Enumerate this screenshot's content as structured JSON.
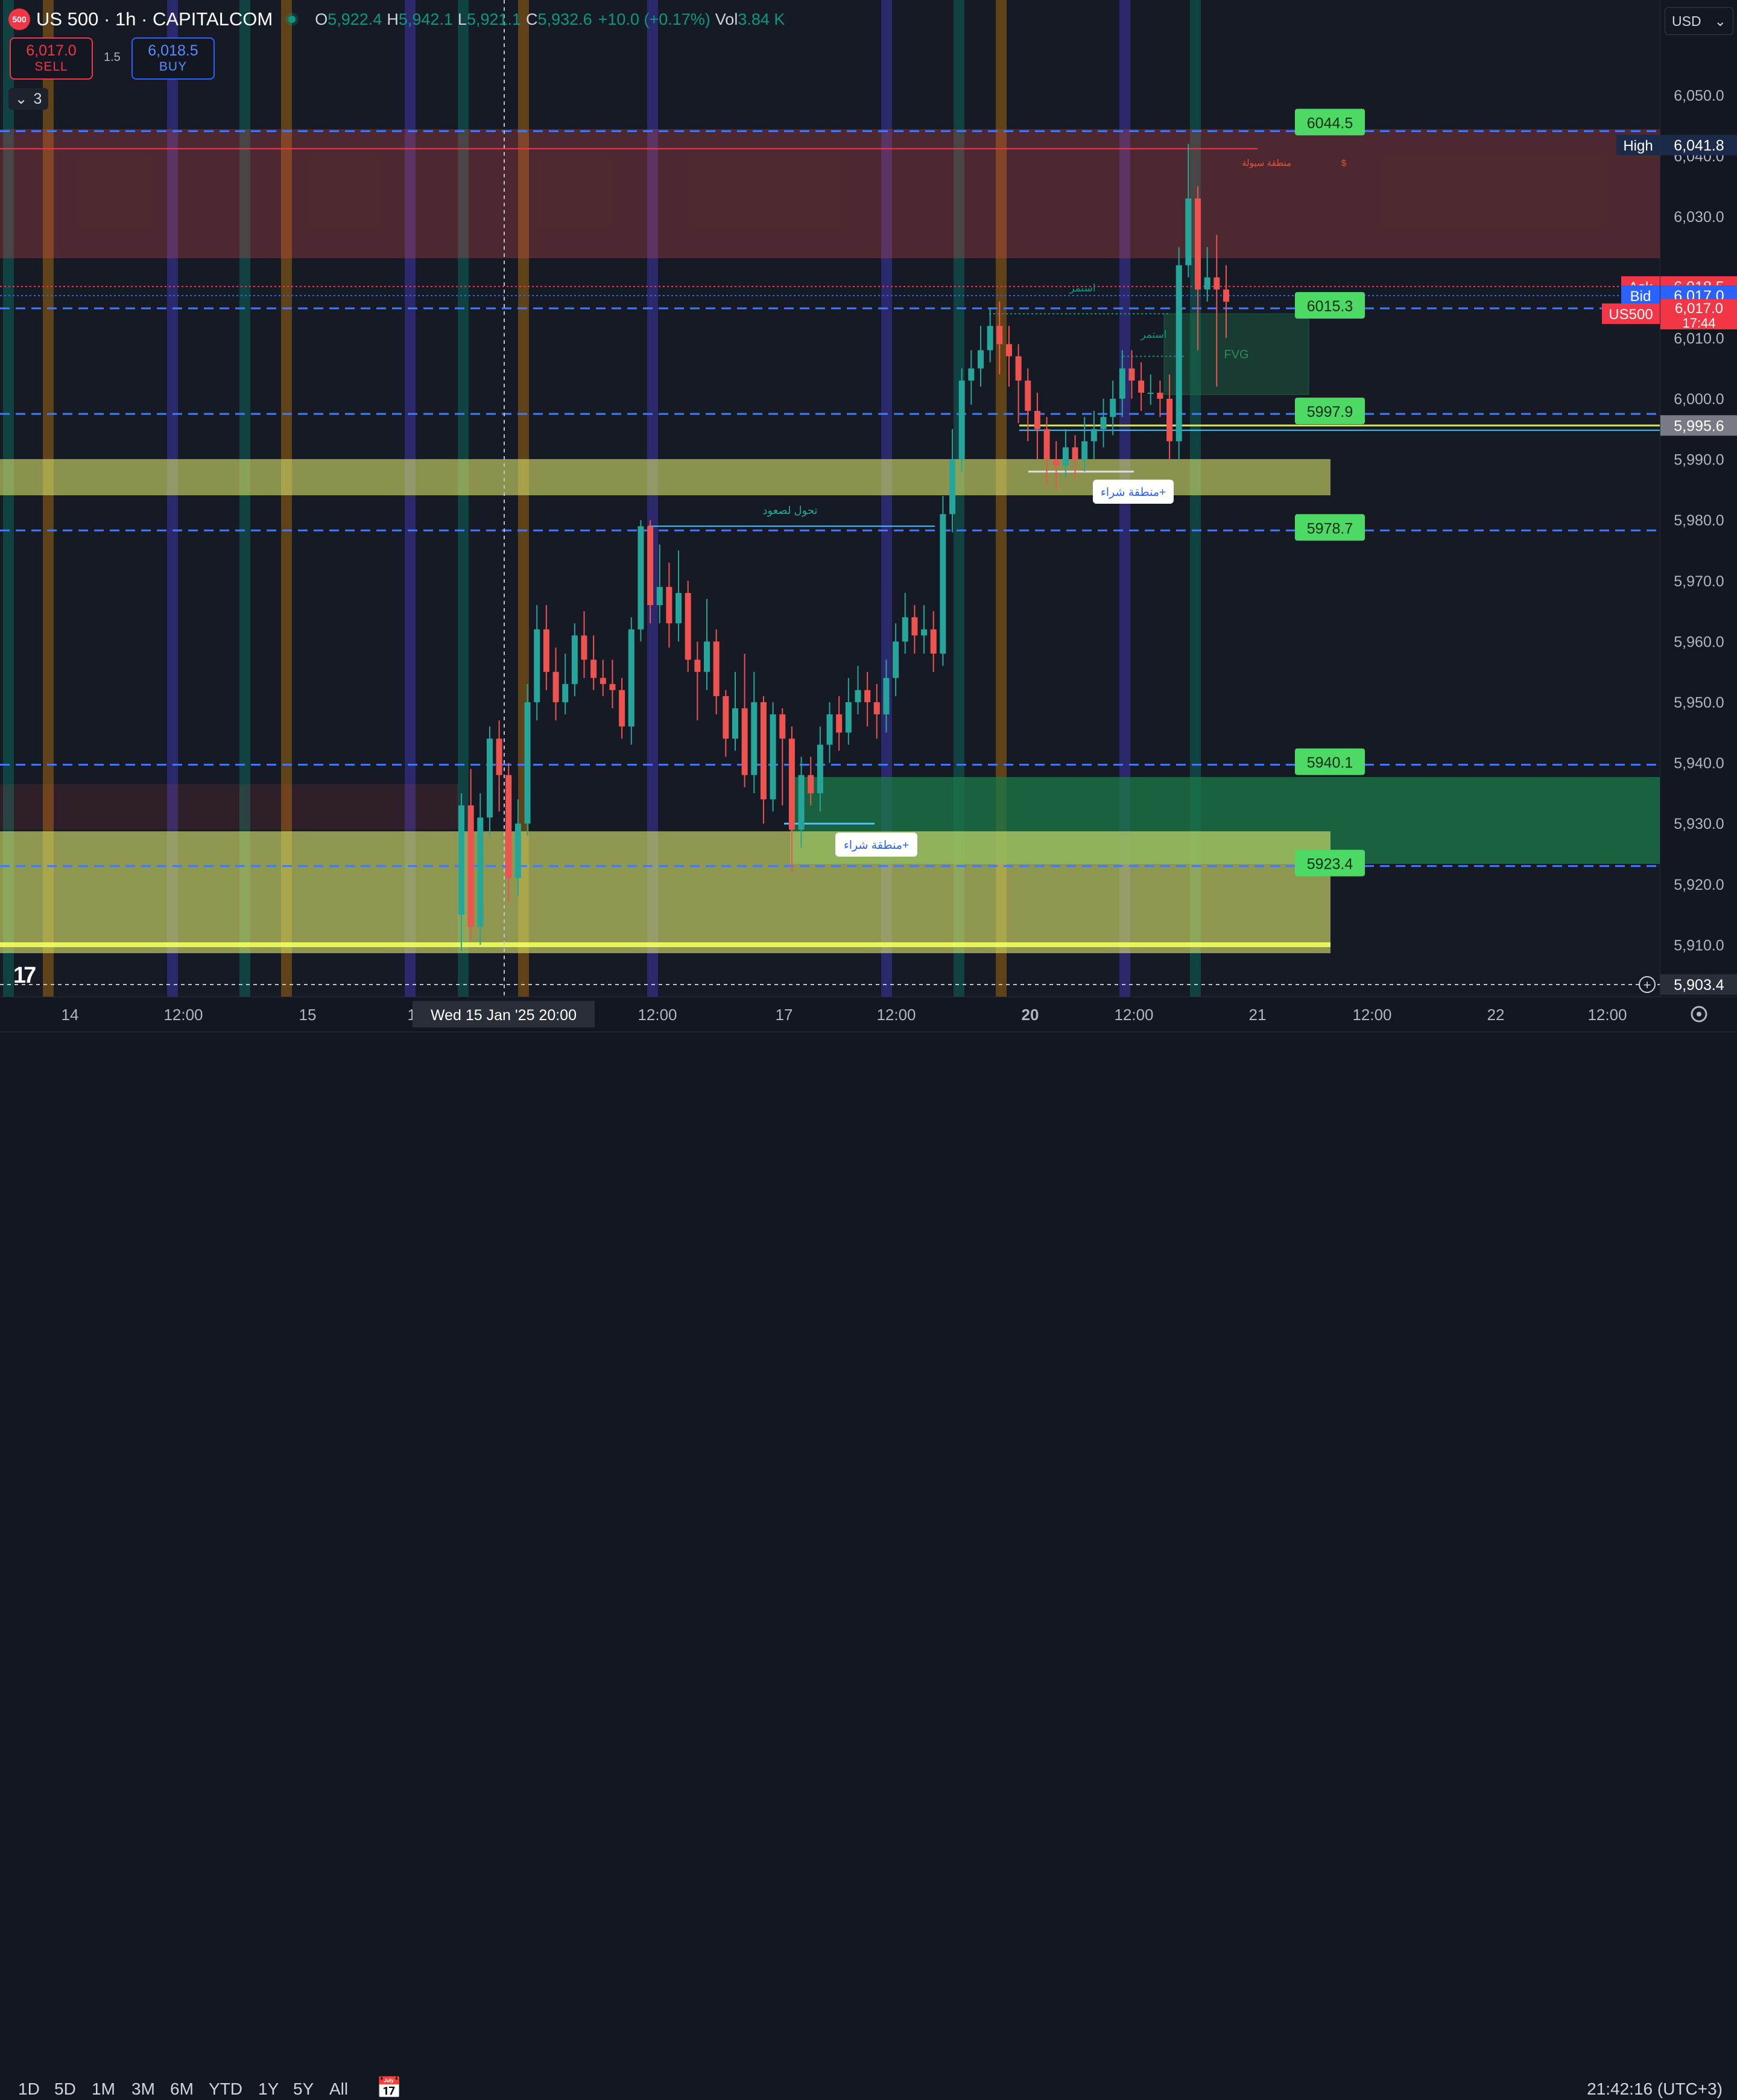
{
  "legend": {
    "logo_text": "500",
    "symbol": "US 500 · 1h · CAPITALCOM",
    "open_label": "O",
    "open": "5,922.4",
    "high_label": "H",
    "high": "5,942.1",
    "low_label": "L",
    "low": "5,921.1",
    "close_label": "C",
    "close": "5,932.6",
    "change": "+10.0 (+0.17%)",
    "vol_label": "Vol",
    "vol": "3.84 K"
  },
  "trade": {
    "sell_price": "6,017.0",
    "sell_label": "SELL",
    "spread": "1.5",
    "buy_price": "6,018.5",
    "buy_label": "BUY",
    "collapse_count": "3"
  },
  "currency": "USD",
  "price_axis": {
    "ticks": [
      "6,050.0",
      "6,040.0",
      "6,030.0",
      "6,010.0",
      "6,000.0",
      "5,990.0",
      "5,980.0",
      "5,970.0",
      "5,960.0",
      "5,950.0",
      "5,940.0",
      "5,930.0",
      "5,920.0",
      "5,910.0"
    ],
    "labels": {
      "high_tag": "High",
      "high_value": "6,041.8",
      "ask_tag": "Ask",
      "ask_value": "6,018.5",
      "bid_tag": "Bid",
      "bid_value": "6,017.0",
      "sym_tag": "US500",
      "sym_value": "6,017.0",
      "countdown": "17:44",
      "level_value": "5,995.6",
      "cursor_value": "5,903.4"
    }
  },
  "time_axis": {
    "ticks": [
      "14",
      "12:00",
      "15",
      "12",
      "12:00",
      "17",
      "12:00",
      "20",
      "12:00",
      "21",
      "12:00",
      "22",
      "12:00"
    ],
    "cursor_label": "Wed 15 Jan '25   20:00"
  },
  "chart_data": {
    "type": "candlestick",
    "y_range": [
      5903,
      6055
    ],
    "levels": [
      "6044.5",
      "6015.3",
      "5997.9",
      "5978.7",
      "5940.1",
      "5923.4"
    ],
    "annotations": {
      "liquidity_zone": "منطقة سيولة",
      "liquidity_symbol": "$",
      "continue_1": "استمر",
      "continue_2": "استمر",
      "fvg": "FVG",
      "shift_up": "تحول لصعود",
      "buy_zone_1": "منطقة شراء+",
      "buy_zone_2": "منطقة شراء+"
    },
    "candles": [
      [
        5915,
        5933,
        5909,
        5935
      ],
      [
        5933,
        5913,
        5911,
        5939
      ],
      [
        5913,
        5931,
        5910,
        5935
      ],
      [
        5931,
        5944,
        5928,
        5946
      ],
      [
        5944,
        5938,
        5932,
        5947
      ],
      [
        5938,
        5921,
        5917,
        5940
      ],
      [
        5921,
        5930,
        5918,
        5934
      ],
      [
        5930,
        5950,
        5928,
        5953
      ],
      [
        5950,
        5962,
        5947,
        5966
      ],
      [
        5962,
        5955,
        5952,
        5966
      ],
      [
        5955,
        5950,
        5947,
        5959
      ],
      [
        5950,
        5953,
        5948,
        5958
      ],
      [
        5953,
        5961,
        5951,
        5963
      ],
      [
        5961,
        5957,
        5954,
        5965
      ],
      [
        5957,
        5954,
        5952,
        5961
      ],
      [
        5954,
        5953,
        5951,
        5957
      ],
      [
        5953,
        5952,
        5949,
        5957
      ],
      [
        5952,
        5946,
        5944,
        5954
      ],
      [
        5946,
        5962,
        5943,
        5964
      ],
      [
        5962,
        5979,
        5960,
        5980
      ],
      [
        5979,
        5966,
        5963,
        5980
      ],
      [
        5966,
        5969,
        5963,
        5976
      ],
      [
        5969,
        5963,
        5959,
        5973
      ],
      [
        5963,
        5968,
        5960,
        5975
      ],
      [
        5968,
        5957,
        5955,
        5970
      ],
      [
        5957,
        5955,
        5947,
        5960
      ],
      [
        5955,
        5960,
        5952,
        5967
      ],
      [
        5960,
        5951,
        5948,
        5962
      ],
      [
        5951,
        5944,
        5941,
        5952
      ],
      [
        5944,
        5949,
        5942,
        5955
      ],
      [
        5949,
        5938,
        5936,
        5958
      ],
      [
        5938,
        5950,
        5935,
        5955
      ],
      [
        5950,
        5934,
        5930,
        5951
      ],
      [
        5934,
        5948,
        5932,
        5950
      ],
      [
        5948,
        5944,
        5933,
        5949
      ],
      [
        5944,
        5929,
        5922,
        5946
      ],
      [
        5929,
        5938,
        5926,
        5941
      ],
      [
        5938,
        5935,
        5933,
        5941
      ],
      [
        5935,
        5943,
        5932,
        5946
      ],
      [
        5943,
        5948,
        5940,
        5950
      ],
      [
        5948,
        5945,
        5942,
        5951
      ],
      [
        5945,
        5950,
        5943,
        5954
      ],
      [
        5950,
        5952,
        5948,
        5956
      ],
      [
        5952,
        5950,
        5946,
        5955
      ],
      [
        5950,
        5948,
        5944,
        5953
      ],
      [
        5948,
        5954,
        5945,
        5957
      ],
      [
        5954,
        5960,
        5951,
        5963
      ],
      [
        5960,
        5964,
        5958,
        5968
      ],
      [
        5964,
        5961,
        5958,
        5966
      ],
      [
        5961,
        5962,
        5958,
        5966
      ],
      [
        5962,
        5958,
        5955,
        5965
      ],
      [
        5958,
        5981,
        5956,
        5984
      ],
      [
        5981,
        5990,
        5978,
        5995
      ],
      [
        5990,
        6003,
        5988,
        6005
      ],
      [
        6003,
        6005,
        5999,
        6008
      ],
      [
        6005,
        6008,
        6002,
        6012
      ],
      [
        6008,
        6012,
        6006,
        6015
      ],
      [
        6012,
        6009,
        6004,
        6016
      ],
      [
        6009,
        6007,
        6002,
        6012
      ],
      [
        6007,
        6003,
        5996,
        6009
      ],
      [
        6003,
        5998,
        5993,
        6005
      ],
      [
        5998,
        5995,
        5990,
        6001
      ],
      [
        5995,
        5990,
        5986,
        5997
      ],
      [
        5990,
        5989,
        5985,
        5993
      ],
      [
        5989,
        5992,
        5987,
        5995
      ],
      [
        5992,
        5990,
        5987,
        5994
      ],
      [
        5990,
        5993,
        5988,
        5997
      ],
      [
        5993,
        5995,
        5990,
        5998
      ],
      [
        5995,
        5997,
        5992,
        6000
      ],
      [
        5997,
        6000,
        5994,
        6003
      ],
      [
        6000,
        6005,
        5997,
        6008
      ],
      [
        6005,
        6003,
        6000,
        6008
      ],
      [
        6003,
        6001,
        5998,
        6006
      ],
      [
        6001,
        6001,
        5999,
        6004
      ],
      [
        6001,
        6000,
        5997,
        6003
      ],
      [
        6000,
        5993,
        5990,
        6004
      ],
      [
        5993,
        6022,
        5990,
        6025
      ],
      [
        6022,
        6033,
        6020,
        6042
      ],
      [
        6033,
        6018,
        6008,
        6035
      ],
      [
        6018,
        6020,
        6016,
        6025
      ],
      [
        6020,
        6018,
        6002,
        6027
      ],
      [
        6018,
        6016,
        6010,
        6022
      ]
    ]
  },
  "bottom_bar": {
    "timeframes": [
      "1D",
      "5D",
      "1M",
      "3M",
      "6M",
      "YTD",
      "1Y",
      "5Y",
      "All"
    ],
    "clock": "21:42:16 (UTC+3)"
  }
}
